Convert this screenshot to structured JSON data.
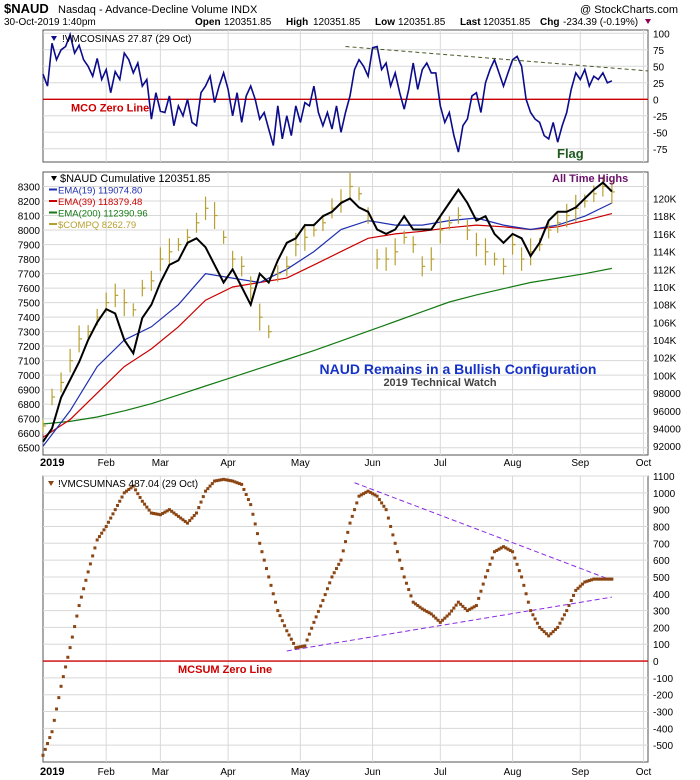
{
  "header": {
    "symbol": "$NAUD",
    "description": "Nasdaq - Advance-Decline Volume INDX",
    "copyright": "@ StockCharts.com",
    "date": "30-Oct-2019 1:40pm",
    "open_label": "Open",
    "open": "120351.85",
    "high_label": "High",
    "high": "120351.85",
    "low_label": "Low",
    "low": "120351.85",
    "last_label": "Last",
    "last": "120351.85",
    "chg_label": "Chg",
    "chg": "-234.39 (-0.19%)"
  },
  "colors": {
    "navy": "#0b0b8c",
    "red": "#cc0000",
    "black": "#000000",
    "blue": "#1f2fb0",
    "green": "#137a13",
    "gold": "#b8a030",
    "brown": "#8b4513",
    "purple": "#8a2be2",
    "grid": "#d8d8d8"
  },
  "chart_data": [
    {
      "type": "line",
      "panel": "top",
      "legend": "!VMCOSINAS 27.87 (29 Oct)",
      "zero_label": "MCO Zero Line",
      "annotation": "Flag",
      "ylim": [
        -95,
        105
      ],
      "yticks": [
        100,
        75,
        50,
        25,
        0,
        -25,
        -50,
        -75
      ],
      "series": [
        {
          "name": "!VMCOSINAS",
          "color": "navy",
          "values": [
            38,
            20,
            85,
            60,
            75,
            80,
            98,
            70,
            82,
            60,
            50,
            35,
            62,
            30,
            45,
            10,
            42,
            30,
            70,
            60,
            40,
            55,
            20,
            30,
            -30,
            10,
            -18,
            -20,
            5,
            -40,
            -10,
            -25,
            0,
            -35,
            -40,
            10,
            20,
            35,
            -5,
            20,
            40,
            15,
            -25,
            10,
            -35,
            5,
            20,
            0,
            -30,
            -20,
            -45,
            -70,
            -10,
            -60,
            -25,
            -55,
            -10,
            -35,
            -5,
            -10,
            20,
            -20,
            -40,
            -20,
            -45,
            -10,
            -50,
            -20,
            5,
            45,
            60,
            50,
            35,
            78,
            80,
            45,
            55,
            20,
            40,
            10,
            -15,
            15,
            55,
            15,
            45,
            55,
            40,
            40,
            -10,
            -35,
            -20,
            -55,
            -80,
            -40,
            -30,
            5,
            10,
            -20,
            25,
            45,
            60,
            40,
            20,
            40,
            60,
            65,
            50,
            0,
            -20,
            -30,
            -35,
            -55,
            -60,
            -35,
            -65,
            -40,
            -20,
            15,
            40,
            30,
            45,
            20,
            35,
            30,
            40,
            25,
            28
          ]
        }
      ],
      "trendline": {
        "color": "dark-green-dashed",
        "from": 80,
        "to": 43
      }
    },
    {
      "type": "line",
      "panel": "middle",
      "title": "NAUD Remains in a Bullish Configuration",
      "subtitle": "2019 Technical Watch",
      "annotation": "All Time Highs",
      "left_ylim": [
        6450,
        8400
      ],
      "left_yticks": [
        8300,
        8200,
        8100,
        8000,
        7900,
        7800,
        7700,
        7600,
        7500,
        7400,
        7300,
        7200,
        7100,
        7000,
        6900,
        6800,
        6700,
        6600,
        6500
      ],
      "right_ylim": [
        91000,
        123000
      ],
      "right_yticks": [
        120000,
        118000,
        116000,
        114000,
        112000,
        110000,
        108000,
        106000,
        104000,
        102000,
        100000,
        98000,
        96000,
        94000,
        92000
      ],
      "right_ytick_labels": [
        "120K",
        "118K",
        "116K",
        "114K",
        "112K",
        "110K",
        "108K",
        "106K",
        "104K",
        "102K",
        "100K",
        "98000",
        "96000",
        "94000",
        "92000"
      ],
      "series": [
        {
          "name": "$NAUD Cumulative 120351.85",
          "color": "black",
          "axis": "right",
          "x": [
            0,
            2,
            4,
            6,
            8,
            10,
            12,
            14,
            16,
            18,
            20,
            22,
            24,
            26,
            28,
            30,
            32,
            34,
            36,
            38,
            40,
            42,
            44,
            46,
            48,
            50,
            52,
            54,
            56,
            58,
            60,
            62,
            64,
            66,
            68,
            70,
            72,
            74,
            76,
            78,
            80,
            82,
            84,
            86,
            88,
            90,
            92,
            94,
            96,
            98,
            100,
            102,
            104,
            106,
            108,
            110,
            112,
            114,
            116,
            118,
            120,
            122,
            124,
            126
          ],
          "values": [
            92500,
            94000,
            97500,
            99500,
            101500,
            104000,
            106000,
            107500,
            107000,
            104000,
            102500,
            106500,
            108000,
            110500,
            112500,
            113000,
            115000,
            115500,
            114500,
            112500,
            110500,
            112000,
            110000,
            108000,
            111500,
            110500,
            113000,
            115000,
            115500,
            117000,
            117000,
            118000,
            118500,
            119500,
            120000,
            119000,
            118500,
            116500,
            116000,
            116500,
            118000,
            116500,
            116500,
            116500,
            118000,
            119500,
            121000,
            119500,
            117500,
            118000,
            116000,
            115000,
            116000,
            115500,
            113500,
            115000,
            117500,
            118500,
            118500,
            119000,
            120000,
            121000,
            121800,
            120800
          ]
        },
        {
          "name": "EMA(19) 119074.80",
          "color": "blue",
          "axis": "right",
          "x": [
            0,
            6,
            12,
            18,
            24,
            30,
            36,
            42,
            48,
            54,
            60,
            66,
            72,
            78,
            84,
            90,
            96,
            102,
            108,
            114,
            120,
            126
          ],
          "values": [
            92000,
            96000,
            101000,
            104000,
            105500,
            108000,
            111500,
            111000,
            110500,
            112000,
            114000,
            116500,
            117500,
            117000,
            117000,
            117500,
            117800,
            117000,
            116500,
            117000,
            118000,
            119500
          ]
        },
        {
          "name": "EMA(39) 118379.48",
          "color": "red",
          "axis": "right",
          "x": [
            0,
            6,
            12,
            18,
            24,
            30,
            36,
            42,
            48,
            54,
            60,
            66,
            72,
            78,
            84,
            90,
            96,
            102,
            108,
            114,
            120,
            126
          ],
          "values": [
            93000,
            95000,
            98000,
            101000,
            103000,
            105500,
            108500,
            110000,
            110500,
            111000,
            112500,
            114000,
            115500,
            116000,
            116300,
            116700,
            117000,
            116800,
            116500,
            116800,
            117500,
            118300
          ]
        },
        {
          "name": "EMA(200) 112390.96",
          "color": "green",
          "axis": "right",
          "x": [
            0,
            6,
            12,
            18,
            24,
            30,
            36,
            42,
            48,
            54,
            60,
            66,
            72,
            78,
            84,
            90,
            96,
            102,
            108,
            114,
            120,
            126
          ],
          "values": [
            94500,
            94800,
            95300,
            96000,
            96800,
            97800,
            98800,
            99800,
            100800,
            101800,
            102800,
            103900,
            105000,
            106100,
            107200,
            108300,
            109100,
            109800,
            110500,
            111000,
            111500,
            112100
          ]
        },
        {
          "name": "$COMPQ 8262.79",
          "color": "gold",
          "axis": "left",
          "style": "ohlc",
          "x": [
            0,
            2,
            4,
            6,
            8,
            10,
            12,
            14,
            16,
            18,
            20,
            22,
            24,
            26,
            28,
            30,
            32,
            34,
            36,
            38,
            40,
            42,
            44,
            46,
            48,
            50,
            52,
            54,
            56,
            58,
            60,
            62,
            64,
            66,
            68,
            70,
            72,
            74,
            76,
            78,
            80,
            82,
            84,
            86,
            88,
            90,
            92,
            94,
            96,
            98,
            100,
            102,
            104,
            106,
            108,
            110,
            112,
            114,
            116,
            118,
            120,
            122,
            124,
            126
          ],
          "values": [
            6650,
            6850,
            6950,
            7100,
            7250,
            7300,
            7400,
            7500,
            7550,
            7500,
            7450,
            7600,
            7650,
            7800,
            7850,
            7900,
            7950,
            8050,
            8150,
            8100,
            7950,
            7800,
            7750,
            7600,
            7400,
            7300,
            7700,
            7750,
            7900,
            7950,
            8000,
            8050,
            8150,
            8200,
            8300,
            8250,
            8100,
            7800,
            7800,
            7850,
            7950,
            7900,
            7750,
            7800,
            8000,
            8050,
            8100,
            8000,
            7900,
            7850,
            7800,
            7750,
            7900,
            7800,
            7850,
            7900,
            8000,
            8050,
            8100,
            8150,
            8200,
            8250,
            8300,
            8262.79
          ]
        }
      ]
    },
    {
      "type": "scatter",
      "panel": "bottom",
      "legend": "!VMCSUMNAS 487.04 (29 Oct)",
      "zero_label": "MCSUM Zero Line",
      "ylim": [
        -600,
        1100
      ],
      "yticks": [
        1100,
        1000,
        900,
        800,
        700,
        600,
        500,
        400,
        300,
        200,
        100,
        0,
        -100,
        -200,
        -300,
        -400,
        -500
      ],
      "series": [
        {
          "name": "!VMCSUMNAS",
          "color": "brown",
          "x": [
            0,
            2,
            4,
            6,
            8,
            10,
            12,
            14,
            16,
            18,
            20,
            22,
            24,
            26,
            28,
            30,
            32,
            34,
            36,
            38,
            40,
            42,
            44,
            46,
            48,
            50,
            52,
            54,
            56,
            58,
            60,
            62,
            64,
            66,
            68,
            70,
            72,
            74,
            76,
            78,
            80,
            82,
            84,
            86,
            88,
            90,
            92,
            94,
            96,
            98,
            100,
            102,
            104,
            106,
            108,
            110,
            112,
            114,
            116,
            118,
            120,
            122,
            124,
            126
          ],
          "values": [
            -560,
            -420,
            -150,
            80,
            330,
            530,
            720,
            800,
            900,
            1000,
            1040,
            950,
            880,
            870,
            900,
            860,
            820,
            880,
            1010,
            1070,
            1080,
            1070,
            1050,
            930,
            700,
            500,
            300,
            180,
            80,
            90,
            230,
            360,
            500,
            600,
            820,
            980,
            1010,
            980,
            900,
            700,
            500,
            350,
            310,
            280,
            230,
            280,
            350,
            300,
            330,
            500,
            650,
            680,
            650,
            500,
            300,
            200,
            150,
            200,
            300,
            420,
            470,
            487,
            487,
            487
          ]
        }
      ],
      "trendlines": [
        {
          "name": "upper",
          "color": "purple",
          "from_x": 69,
          "from": 1060,
          "to_x": 126,
          "to": 480
        },
        {
          "name": "lower",
          "color": "purple",
          "from_x": 54,
          "from": 60,
          "to_x": 126,
          "to": 380
        }
      ]
    }
  ],
  "xaxis": {
    "labels": [
      "2019",
      "Feb",
      "Mar",
      "Apr",
      "May",
      "Jun",
      "Jul",
      "Aug",
      "Sep",
      "Oct"
    ],
    "positions": [
      0,
      14,
      26,
      41,
      57,
      73,
      88,
      104,
      119,
      133
    ]
  }
}
